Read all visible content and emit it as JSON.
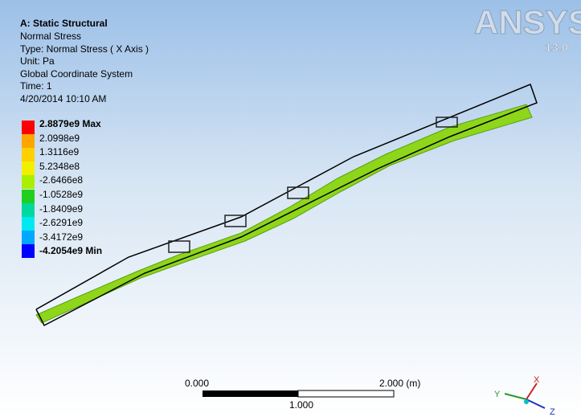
{
  "header": {
    "title": "A: Static Structural",
    "lines": [
      "Normal Stress",
      "Type: Normal Stress ( X Axis )",
      "Unit: Pa",
      "Global Coordinate System",
      "Time: 1",
      "4/20/2014 10:10 AM"
    ]
  },
  "legend": {
    "labels": [
      "2.8879e9 Max",
      "2.0998e9",
      "1.3116e9",
      "5.2348e8",
      "-2.6466e8",
      "-1.0528e9",
      "-1.8409e9",
      "-2.6291e9",
      "-3.4172e9",
      "-4.2054e9 Min"
    ],
    "colors": [
      "#ff0000",
      "#ffa500",
      "#ffd000",
      "#f0f000",
      "#a8f000",
      "#20d020",
      "#00d8a0",
      "#00e8f0",
      "#00a8ff",
      "#0000ff"
    ]
  },
  "logo": {
    "name": "ANSYS",
    "version": "13.0"
  },
  "scale_bar": {
    "start": "0.000",
    "end": "2.000 (m)",
    "middle": "1.000"
  },
  "triad": {
    "x": "X",
    "y": "Y",
    "z": "Z"
  }
}
